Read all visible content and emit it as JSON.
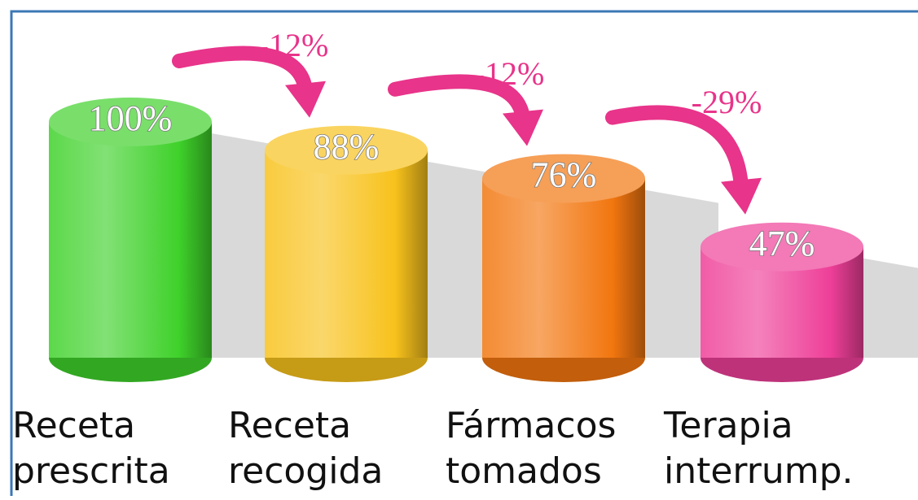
{
  "chart_data": {
    "type": "bar",
    "categories": [
      "Receta prescrita",
      "Receta recogida",
      "Fármacos tomados",
      "Terapia interrump."
    ],
    "values": [
      100,
      88,
      76,
      47
    ],
    "value_labels": [
      "100%",
      "88%",
      "76%",
      "47%"
    ],
    "colors": [
      "#3fd12a",
      "#f8c21c",
      "#f2760f",
      "#ee3f98"
    ],
    "changes": [
      -12,
      -12,
      -29
    ],
    "change_labels": [
      "-12%",
      "-12%",
      "-29%"
    ],
    "change_color": "#e8348a"
  }
}
